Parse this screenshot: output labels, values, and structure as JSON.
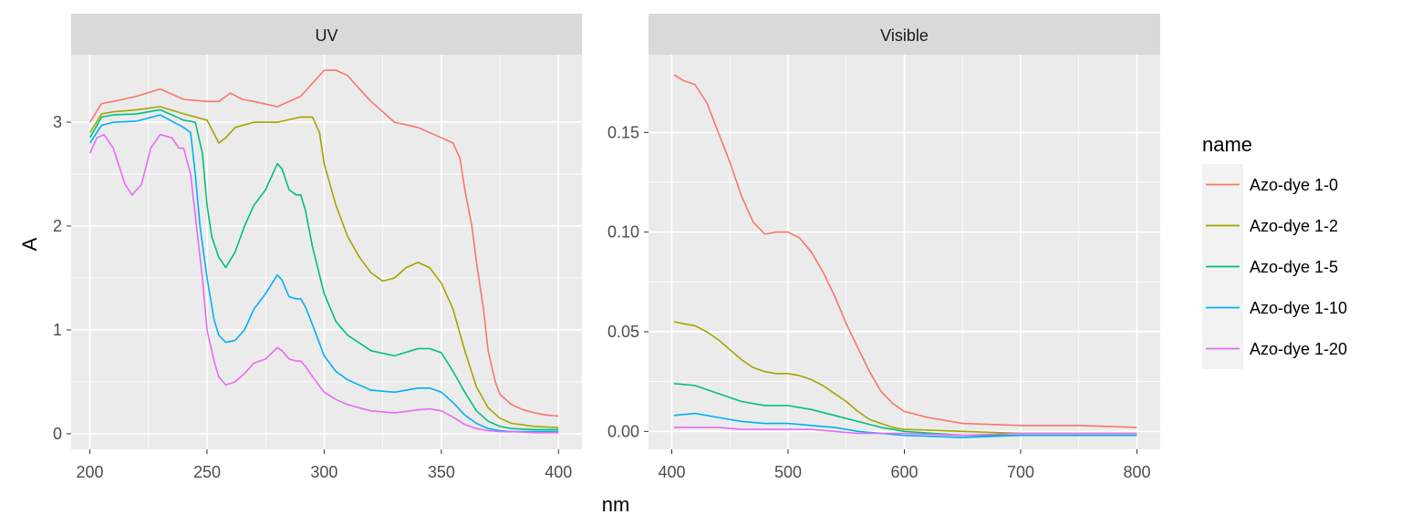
{
  "chart_data": {
    "type": "line",
    "xlabel": "nm",
    "ylabel": "A",
    "legend": {
      "title": "name",
      "position": "right",
      "entries": [
        "Azo-dye 1-0",
        "Azo-dye 1-2",
        "Azo-dye 1-5",
        "Azo-dye 1-10",
        "Azo-dye 1-20"
      ]
    },
    "colors": {
      "Azo-dye 1-0": "#F8766D",
      "Azo-dye 1-2": "#A3A500",
      "Azo-dye 1-5": "#00BF7D",
      "Azo-dye 1-10": "#00B0F6",
      "Azo-dye 1-20": "#E76BF3"
    },
    "panels": [
      {
        "title": "UV",
        "xlim": [
          192,
          410
        ],
        "ylim": [
          -0.15,
          3.65
        ],
        "xticks": [
          200,
          250,
          300,
          350,
          400
        ],
        "yticks": [
          0,
          1,
          2,
          3
        ],
        "series": [
          {
            "name": "Azo-dye 1-0",
            "x": [
              200,
              205,
              210,
              220,
              230,
              240,
              250,
              255,
              260,
              265,
              270,
              280,
              290,
              300,
              305,
              310,
              315,
              320,
              325,
              330,
              340,
              350,
              355,
              358,
              360,
              363,
              365,
              368,
              370,
              373,
              375,
              380,
              385,
              390,
              395,
              400
            ],
            "y": [
              3.0,
              3.18,
              3.2,
              3.25,
              3.32,
              3.22,
              3.2,
              3.2,
              3.28,
              3.22,
              3.2,
              3.15,
              3.25,
              3.5,
              3.5,
              3.45,
              3.32,
              3.2,
              3.1,
              3.0,
              2.95,
              2.85,
              2.8,
              2.65,
              2.35,
              2.0,
              1.65,
              1.2,
              0.8,
              0.5,
              0.38,
              0.28,
              0.23,
              0.2,
              0.18,
              0.17
            ]
          },
          {
            "name": "Azo-dye 1-2",
            "x": [
              200,
              205,
              210,
              220,
              230,
              240,
              250,
              255,
              258,
              262,
              270,
              280,
              290,
              295,
              298,
              300,
              305,
              310,
              315,
              320,
              325,
              330,
              335,
              340,
              345,
              350,
              355,
              360,
              365,
              370,
              375,
              380,
              390,
              400
            ],
            "y": [
              2.9,
              3.08,
              3.1,
              3.12,
              3.15,
              3.08,
              3.02,
              2.8,
              2.85,
              2.95,
              3.0,
              3.0,
              3.05,
              3.05,
              2.9,
              2.6,
              2.2,
              1.9,
              1.7,
              1.55,
              1.47,
              1.5,
              1.6,
              1.65,
              1.6,
              1.45,
              1.2,
              0.8,
              0.45,
              0.25,
              0.15,
              0.1,
              0.07,
              0.06
            ]
          },
          {
            "name": "Azo-dye 1-5",
            "x": [
              200,
              205,
              210,
              220,
              230,
              240,
              245,
              248,
              250,
              252,
              255,
              258,
              262,
              266,
              270,
              275,
              280,
              282,
              285,
              288,
              290,
              292,
              295,
              300,
              305,
              310,
              320,
              330,
              340,
              345,
              350,
              355,
              360,
              365,
              370,
              375,
              380,
              390,
              400
            ],
            "y": [
              2.85,
              3.05,
              3.07,
              3.08,
              3.12,
              3.02,
              3.0,
              2.7,
              2.2,
              1.9,
              1.7,
              1.6,
              1.75,
              2.0,
              2.2,
              2.35,
              2.6,
              2.55,
              2.35,
              2.3,
              2.3,
              2.15,
              1.8,
              1.35,
              1.08,
              0.95,
              0.8,
              0.75,
              0.82,
              0.82,
              0.78,
              0.6,
              0.4,
              0.22,
              0.12,
              0.07,
              0.05,
              0.04,
              0.04
            ]
          },
          {
            "name": "Azo-dye 1-10",
            "x": [
              200,
              205,
              210,
              220,
              230,
              240,
              243,
              245,
              247,
              250,
              253,
              255,
              258,
              262,
              266,
              270,
              275,
              280,
              282,
              285,
              288,
              290,
              292,
              295,
              300,
              305,
              310,
              320,
              330,
              340,
              345,
              350,
              355,
              360,
              365,
              370,
              375,
              380,
              390,
              400
            ],
            "y": [
              2.8,
              2.97,
              3.0,
              3.01,
              3.07,
              2.95,
              2.9,
              2.5,
              2.0,
              1.5,
              1.1,
              0.95,
              0.88,
              0.9,
              1.0,
              1.2,
              1.35,
              1.53,
              1.48,
              1.32,
              1.3,
              1.3,
              1.22,
              1.05,
              0.75,
              0.6,
              0.52,
              0.42,
              0.4,
              0.44,
              0.44,
              0.4,
              0.3,
              0.18,
              0.1,
              0.05,
              0.03,
              0.02,
              0.02,
              0.02
            ]
          },
          {
            "name": "Azo-dye 1-20",
            "x": [
              200,
              203,
              206,
              210,
              215,
              218,
              222,
              226,
              230,
              235,
              238,
              240,
              243,
              245,
              248,
              250,
              253,
              255,
              258,
              262,
              266,
              270,
              275,
              280,
              282,
              285,
              288,
              290,
              292,
              295,
              300,
              305,
              310,
              320,
              330,
              340,
              345,
              350,
              355,
              360,
              365,
              370,
              375,
              380,
              390,
              400
            ],
            "y": [
              2.7,
              2.85,
              2.88,
              2.75,
              2.4,
              2.3,
              2.4,
              2.75,
              2.88,
              2.85,
              2.75,
              2.75,
              2.5,
              2.1,
              1.5,
              1.0,
              0.7,
              0.55,
              0.47,
              0.5,
              0.58,
              0.68,
              0.72,
              0.83,
              0.8,
              0.72,
              0.7,
              0.7,
              0.65,
              0.55,
              0.4,
              0.33,
              0.28,
              0.22,
              0.2,
              0.23,
              0.24,
              0.22,
              0.16,
              0.09,
              0.05,
              0.03,
              0.02,
              0.02,
              0.01,
              0.01
            ]
          }
        ]
      },
      {
        "title": "Visible",
        "xlim": [
          380,
          820
        ],
        "ylim": [
          -0.009,
          0.189
        ],
        "xticks": [
          400,
          500,
          600,
          700,
          800
        ],
        "yticks": [
          0.0,
          0.05,
          0.1,
          0.15
        ],
        "ytick_labels": [
          "0.00",
          "0.05",
          "0.10",
          "0.15"
        ],
        "series": [
          {
            "name": "Azo-dye 1-0",
            "x": [
              402,
              410,
              420,
              430,
              440,
              450,
              460,
              470,
              480,
              490,
              500,
              510,
              520,
              530,
              540,
              550,
              560,
              570,
              580,
              590,
              600,
              620,
              650,
              700,
              750,
              800
            ],
            "y": [
              0.179,
              0.176,
              0.174,
              0.165,
              0.15,
              0.135,
              0.118,
              0.105,
              0.099,
              0.1,
              0.1,
              0.097,
              0.09,
              0.08,
              0.068,
              0.054,
              0.042,
              0.03,
              0.02,
              0.014,
              0.01,
              0.007,
              0.004,
              0.003,
              0.003,
              0.002
            ]
          },
          {
            "name": "Azo-dye 1-2",
            "x": [
              402,
              410,
              420,
              430,
              440,
              450,
              460,
              470,
              480,
              490,
              500,
              510,
              520,
              530,
              540,
              550,
              560,
              570,
              580,
              590,
              600,
              650,
              700,
              750,
              800
            ],
            "y": [
              0.055,
              0.054,
              0.053,
              0.05,
              0.046,
              0.041,
              0.036,
              0.032,
              0.03,
              0.029,
              0.029,
              0.028,
              0.026,
              0.023,
              0.019,
              0.015,
              0.01,
              0.006,
              0.004,
              0.002,
              0.001,
              0.0,
              -0.001,
              -0.001,
              -0.001
            ]
          },
          {
            "name": "Azo-dye 1-5",
            "x": [
              402,
              420,
              440,
              460,
              480,
              500,
              520,
              540,
              560,
              580,
              600,
              650,
              700,
              750,
              800
            ],
            "y": [
              0.024,
              0.023,
              0.019,
              0.015,
              0.013,
              0.013,
              0.011,
              0.008,
              0.005,
              0.002,
              0.0,
              -0.002,
              -0.002,
              -0.002,
              -0.002
            ]
          },
          {
            "name": "Azo-dye 1-10",
            "x": [
              402,
              420,
              440,
              460,
              480,
              500,
              520,
              540,
              560,
              580,
              600,
              650,
              700,
              750,
              800
            ],
            "y": [
              0.008,
              0.009,
              0.007,
              0.005,
              0.004,
              0.004,
              0.003,
              0.002,
              0.0,
              -0.001,
              -0.002,
              -0.003,
              -0.002,
              -0.002,
              -0.002
            ]
          },
          {
            "name": "Azo-dye 1-20",
            "x": [
              402,
              420,
              440,
              460,
              480,
              500,
              520,
              540,
              560,
              580,
              600,
              650,
              700,
              750,
              800
            ],
            "y": [
              0.002,
              0.002,
              0.002,
              0.001,
              0.001,
              0.001,
              0.001,
              0.0,
              -0.001,
              -0.001,
              -0.001,
              -0.002,
              -0.001,
              -0.001,
              -0.001
            ]
          }
        ]
      }
    ]
  }
}
